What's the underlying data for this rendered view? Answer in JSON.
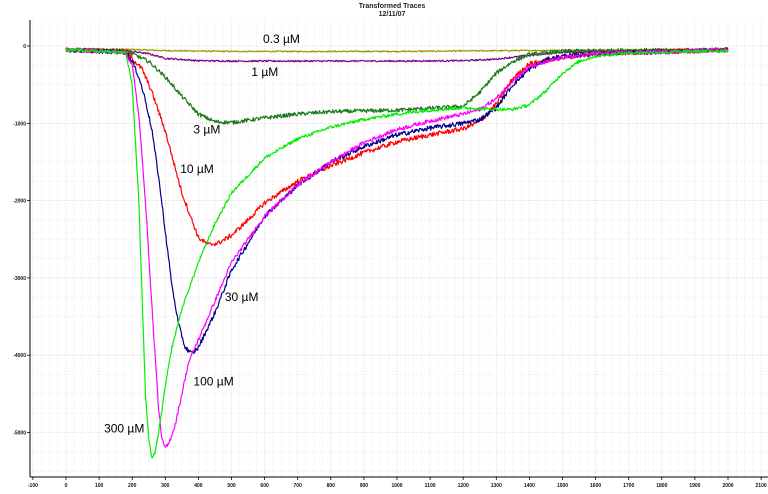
{
  "chart_data": {
    "type": "line",
    "title": "Transformed Traces",
    "subtitle": "12/11/07",
    "xlabel": "",
    "ylabel": "",
    "xlim": [
      -100,
      2100
    ],
    "ylim": [
      -5550,
      100
    ],
    "x_ticks": [
      -100,
      0,
      100,
      200,
      300,
      400,
      500,
      600,
      700,
      800,
      900,
      1000,
      1100,
      1200,
      1300,
      1400,
      1500,
      1600,
      1700,
      1800,
      1900,
      2000,
      2100
    ],
    "x_tick_labels": [
      "-100",
      "0",
      "100",
      "200",
      "300",
      "400",
      "500",
      "600",
      "700",
      "800",
      "900",
      "1000",
      "1100",
      "1200",
      "1300",
      "1400",
      "1500",
      "1600",
      "1700",
      "1800",
      "1900",
      "2000",
      "2100"
    ],
    "y_ticks": [
      0,
      -1000,
      -2000,
      -3000,
      -4000,
      -5000
    ],
    "y_tick_labels": [
      "0",
      "-1000",
      "-2000",
      "-3000",
      "-4000",
      "-5000"
    ],
    "grid": true,
    "legend": "none",
    "annotations": [
      {
        "text": "0.3 µM",
        "x": 595,
        "y": 40
      },
      {
        "text": "1 µM",
        "x": 560,
        "y": -390
      },
      {
        "text": "3 µM",
        "x": 385,
        "y": -1130
      },
      {
        "text": "10 µM",
        "x": 345,
        "y": -1640
      },
      {
        "text": "30 µM",
        "x": 480,
        "y": -3300
      },
      {
        "text": "100 µM",
        "x": 385,
        "y": -4390
      },
      {
        "text": "300 µM",
        "x": 115,
        "y": -5000
      }
    ],
    "series": [
      {
        "color": "#9a9a00",
        "noise": 8,
        "x": [
          0,
          200,
          300,
          500,
          1000,
          1500,
          2000
        ],
        "y": [
          -40,
          -45,
          -60,
          -70,
          -70,
          -55,
          -40
        ]
      },
      {
        "color": "#800080",
        "noise": 10,
        "x": [
          0,
          180,
          250,
          300,
          400,
          500,
          700,
          1000,
          1200,
          1300,
          1400,
          1500,
          2000
        ],
        "y": [
          -50,
          -60,
          -100,
          -160,
          -190,
          -195,
          -195,
          -195,
          -190,
          -170,
          -120,
          -80,
          -50
        ]
      },
      {
        "color": "#1a7a1a",
        "noise": 25,
        "x": [
          0,
          180,
          250,
          300,
          350,
          400,
          450,
          500,
          600,
          700,
          800,
          1000,
          1200,
          1250,
          1300,
          1350,
          1400,
          1500,
          1600,
          2000
        ],
        "y": [
          -50,
          -60,
          -200,
          -400,
          -650,
          -880,
          -980,
          -990,
          -930,
          -880,
          -850,
          -830,
          -780,
          -600,
          -350,
          -200,
          -110,
          -70,
          -60,
          -50
        ]
      },
      {
        "color": "#ff0000",
        "noise": 30,
        "x": [
          0,
          180,
          230,
          260,
          300,
          350,
          400,
          430,
          460,
          500,
          550,
          600,
          700,
          800,
          900,
          1000,
          1100,
          1200,
          1250,
          1300,
          1350,
          1400,
          1500,
          1600,
          2000
        ],
        "y": [
          -50,
          -70,
          -300,
          -600,
          -1100,
          -1900,
          -2480,
          -2570,
          -2550,
          -2450,
          -2250,
          -2030,
          -1750,
          -1550,
          -1380,
          -1240,
          -1150,
          -1070,
          -980,
          -750,
          -420,
          -230,
          -150,
          -100,
          -50
        ]
      },
      {
        "color": "#00008b",
        "noise": 30,
        "x": [
          0,
          180,
          200,
          220,
          240,
          260,
          280,
          300,
          320,
          340,
          360,
          380,
          400,
          450,
          500,
          600,
          700,
          800,
          900,
          1000,
          1100,
          1200,
          1250,
          1300,
          1350,
          1400,
          1450,
          1500,
          1600,
          2000
        ],
        "y": [
          -50,
          -80,
          -200,
          -400,
          -700,
          -1100,
          -1700,
          -2400,
          -3100,
          -3600,
          -3900,
          -3980,
          -3900,
          -3450,
          -2900,
          -2200,
          -1800,
          -1500,
          -1300,
          -1150,
          -1060,
          -1000,
          -950,
          -800,
          -500,
          -300,
          -180,
          -130,
          -100,
          -50
        ]
      },
      {
        "color": "#ff00ff",
        "noise": 25,
        "x": [
          0,
          180,
          200,
          220,
          240,
          260,
          280,
          290,
          300,
          310,
          330,
          350,
          370,
          400,
          450,
          500,
          600,
          700,
          800,
          900,
          1000,
          1100,
          1200,
          1250,
          1300,
          1350,
          1400,
          1500,
          1600,
          2000
        ],
        "y": [
          -50,
          -80,
          -250,
          -900,
          -2000,
          -3400,
          -4700,
          -5100,
          -5200,
          -5150,
          -4900,
          -4500,
          -4100,
          -3800,
          -3300,
          -2800,
          -2200,
          -1800,
          -1500,
          -1250,
          -1080,
          -970,
          -880,
          -820,
          -680,
          -450,
          -270,
          -150,
          -100,
          -50
        ]
      },
      {
        "color": "#00ee00",
        "noise": 20,
        "x": [
          0,
          180,
          200,
          220,
          240,
          250,
          260,
          270,
          280,
          300,
          320,
          350,
          400,
          450,
          500,
          600,
          700,
          800,
          900,
          1000,
          1100,
          1200,
          1300,
          1350,
          1400,
          1450,
          1500,
          1550,
          1600,
          1700,
          2000
        ],
        "y": [
          -50,
          -80,
          -500,
          -2000,
          -4500,
          -5100,
          -5330,
          -5250,
          -5000,
          -4400,
          -3900,
          -3400,
          -2800,
          -2300,
          -1900,
          -1450,
          -1200,
          -1050,
          -950,
          -880,
          -830,
          -800,
          -820,
          -820,
          -760,
          -580,
          -350,
          -200,
          -130,
          -90,
          -60
        ]
      }
    ]
  }
}
